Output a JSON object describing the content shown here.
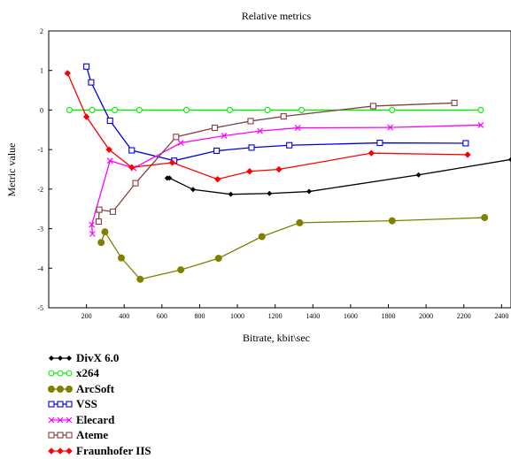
{
  "chart_data": {
    "type": "line",
    "title": "Relative metrics",
    "xlabel": "Bitrate, kbit\\sec",
    "ylabel": "Metric value",
    "xlim": [
      0,
      2450
    ],
    "ylim": [
      -5,
      2
    ],
    "x_ticks": [
      0,
      200,
      400,
      600,
      800,
      1000,
      1200,
      1400,
      1600,
      1800,
      2000,
      2200,
      2400
    ],
    "y_ticks": [
      -5,
      -4,
      -3,
      -2,
      -1,
      0,
      1,
      2
    ],
    "grid": false,
    "legend_position": "below",
    "series": [
      {
        "name": "DivX 6.0",
        "color": "#000000",
        "marker": "diamond-small",
        "x": [
          628,
          640,
          765,
          965,
          1170,
          1380,
          1960,
          2450
        ],
        "y": [
          -1.72,
          -1.72,
          -2.01,
          -2.13,
          -2.11,
          -2.06,
          -1.64,
          -1.25
        ]
      },
      {
        "name": "x264",
        "color": "#00ee00",
        "marker": "circle-open",
        "x": [
          110,
          230,
          350,
          480,
          730,
          960,
          1160,
          1340,
          1820,
          2290
        ],
        "y": [
          0,
          0,
          0,
          0,
          0,
          0,
          0,
          0,
          0,
          0
        ]
      },
      {
        "name": "ArcSoft",
        "color": "#808000",
        "marker": "circle-filled",
        "x": [
          278,
          298,
          385,
          485,
          700,
          900,
          1130,
          1330,
          1820,
          2310
        ],
        "y": [
          -3.35,
          -3.08,
          -3.74,
          -4.28,
          -4.04,
          -3.75,
          -3.2,
          -2.85,
          -2.8,
          -2.72
        ]
      },
      {
        "name": "VSS",
        "color": "#0000dd",
        "marker": "square-open",
        "x": [
          200,
          225,
          325,
          440,
          665,
          890,
          1075,
          1275,
          1755,
          2210
        ],
        "y": [
          1.1,
          0.7,
          -0.27,
          -1.02,
          -1.28,
          -1.03,
          -0.95,
          -0.89,
          -0.83,
          -0.84
        ]
      },
      {
        "name": "Elecard",
        "color": "#ff00ff",
        "marker": "x-cross",
        "x": [
          232,
          228,
          325,
          450,
          700,
          930,
          1120,
          1320,
          1810,
          2290
        ],
        "y": [
          -3.13,
          -2.9,
          -1.28,
          -1.47,
          -0.83,
          -0.65,
          -0.53,
          -0.45,
          -0.44,
          -0.38
        ]
      },
      {
        "name": "Ateme",
        "color": "#804040",
        "marker": "square-open",
        "x": [
          265,
          268,
          340,
          460,
          675,
          880,
          1070,
          1245,
          1720,
          2150
        ],
        "y": [
          -2.82,
          -2.52,
          -2.57,
          -1.85,
          -0.68,
          -0.45,
          -0.28,
          -0.16,
          0.1,
          0.18
        ]
      },
      {
        "name": "Fraunhofer IIS",
        "color": "#ff0000",
        "marker": "diamond-filled",
        "x": [
          100,
          200,
          320,
          440,
          655,
          895,
          1065,
          1220,
          1710,
          2220
        ],
        "y": [
          0.93,
          -0.17,
          -1.0,
          -1.45,
          -1.33,
          -1.75,
          -1.55,
          -1.5,
          -1.09,
          -1.13
        ]
      }
    ]
  }
}
